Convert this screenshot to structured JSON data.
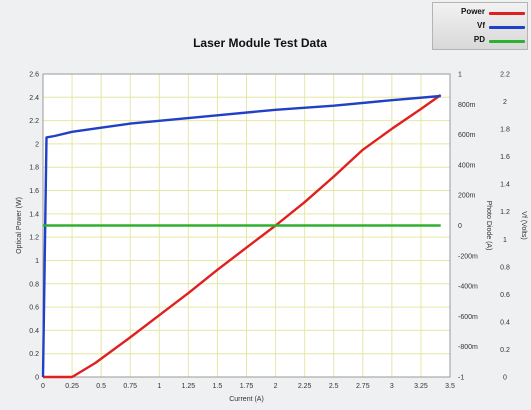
{
  "chart_data": {
    "type": "line",
    "title": "Laser Module Test Data",
    "xlabel": "Current (A)",
    "ylabel": "Optical Power (W)",
    "y2label": "Photo Diode (A)",
    "y3label": "Vf (Volts)",
    "xlim": [
      0,
      3.5
    ],
    "ylim": [
      0,
      2.6
    ],
    "y2lim": [
      -1,
      1
    ],
    "y3lim": [
      0,
      2.2
    ],
    "grid": true,
    "legend_position": "top-right",
    "x_ticks": [
      "0",
      "0.25",
      "0.5",
      "0.75",
      "1",
      "1.25",
      "1.5",
      "1.75",
      "2",
      "2.25",
      "2.5",
      "2.75",
      "3",
      "3.25",
      "3.5"
    ],
    "y_ticks": [
      "0",
      "0.2",
      "0.4",
      "0.6",
      "0.8",
      "1",
      "1.2",
      "1.4",
      "1.6",
      "1.8",
      "2",
      "2.2",
      "2.4",
      "2.6"
    ],
    "y2_ticks": [
      "-1",
      "-800m",
      "-600m",
      "-400m",
      "-200m",
      "0",
      "200m",
      "400m",
      "600m",
      "800m",
      "1"
    ],
    "y3_ticks": [
      "0",
      "0.2",
      "0.4",
      "0.6",
      "0.8",
      "1",
      "1.2",
      "1.4",
      "1.6",
      "1.8",
      "2",
      "2.2"
    ],
    "series": [
      {
        "name": "Power",
        "color": "#e02020",
        "axis": "y",
        "x": [
          0,
          0.25,
          0.45,
          0.75,
          1.0,
          1.25,
          1.5,
          1.75,
          2.0,
          2.25,
          2.5,
          2.75,
          3.0,
          3.25,
          3.42
        ],
        "y": [
          0,
          0,
          0.12,
          0.34,
          0.53,
          0.72,
          0.92,
          1.11,
          1.3,
          1.5,
          1.72,
          1.95,
          2.13,
          2.3,
          2.42
        ]
      },
      {
        "name": "Vf",
        "color": "#2040c8",
        "axis": "y3",
        "x": [
          0,
          0.03,
          0.1,
          0.25,
          0.5,
          0.75,
          1.0,
          1.5,
          2.0,
          2.5,
          3.0,
          3.42
        ],
        "y": [
          0,
          1.74,
          1.75,
          1.78,
          1.81,
          1.84,
          1.86,
          1.9,
          1.94,
          1.97,
          2.01,
          2.04
        ]
      },
      {
        "name": "PD",
        "color": "#30b030",
        "axis": "y2",
        "x": [
          0,
          3.42
        ],
        "y": [
          0,
          0
        ]
      }
    ]
  }
}
